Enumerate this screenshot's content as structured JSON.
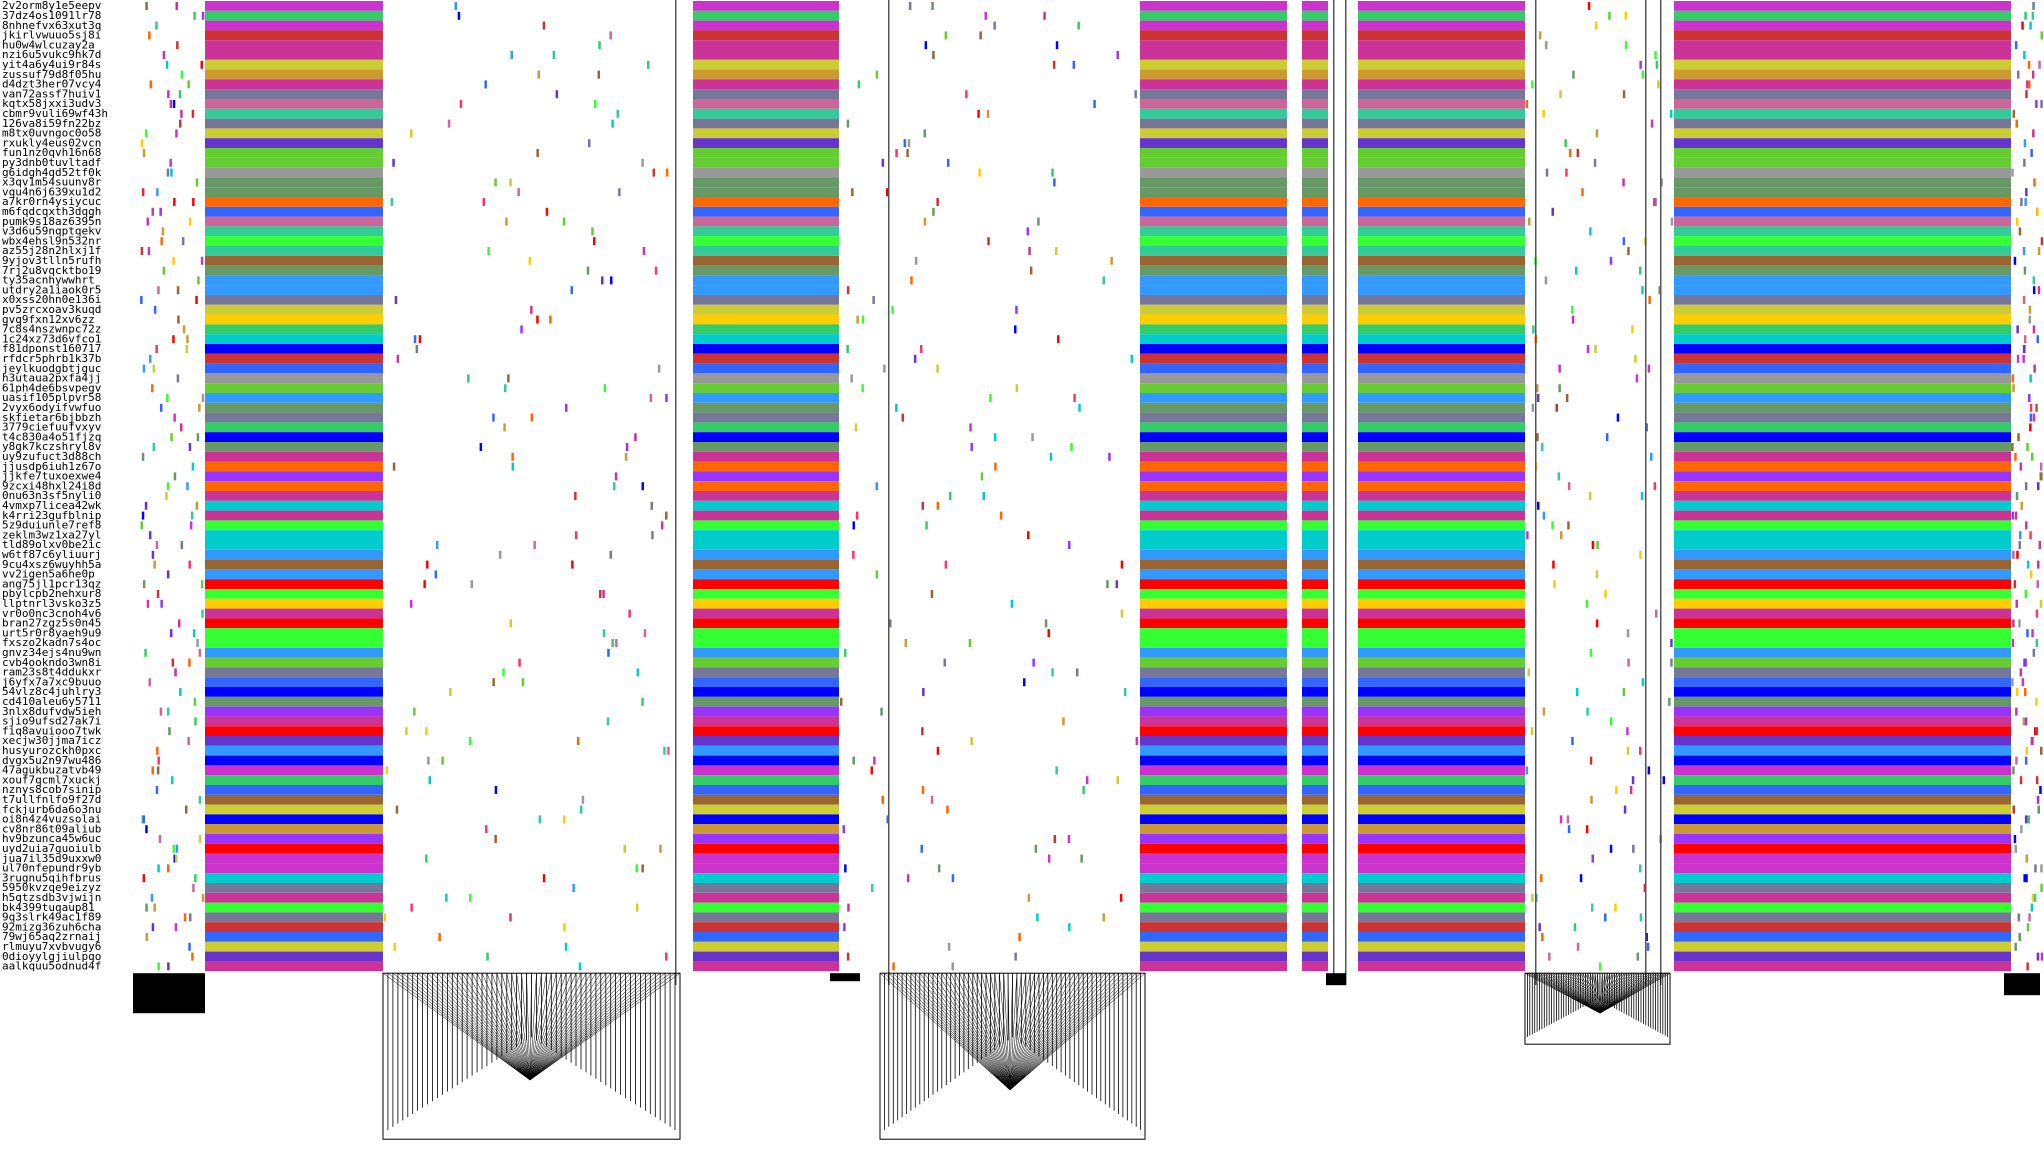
{
  "labels": [
    "2v2orm8y1e5eepv",
    "37dz4os1091lr78",
    "8nhnefvx63xut3q",
    "jkirlvwuuo5sj8i",
    "hu0w4wlcuzay2a",
    "nzi6u5vukc9hk7d",
    "yit4a6y4ui9r84s",
    "zussuf79d8f05hu",
    "d4dzt3her07vcy4",
    "van72assf7huiv1",
    "kqtx58jxxi3udv3",
    "cbmr9vuli69wf43h",
    "126va8i59fn22bz",
    "m8tx0uvngoc0o58",
    "rxukly4eus02vcn",
    "fun1nz0qvh16n68",
    "py3dnb0tuvltadf",
    "g6idgh4qd52tf0k",
    "x3qv1m54suunv8r",
    "vqu4n6j639xu1d2",
    "a7kr0rn4ysiycuc",
    "m6fqdcqxth3dqgh",
    "pumk9s18az6395n",
    "v3d6u59nqptqekv",
    "wbx4ehsl9n532nr",
    "az55j28n2hlxj1f",
    "9yjov3tlln5rufh",
    "7rj2u8vqcktbo19",
    "ty35acnhywwhrt",
    "utdry2a1iaok0r5",
    "x0xss20hn0e136i",
    "pv5zrcxoav3kuqd",
    "gvq9fxn12xv6zz",
    "7c8s4nszwnpc72z",
    "1c24xz73d6vfco1",
    "f81dponst160717",
    "rfdcr5phrb1k37b",
    "jeylkuodgbtjguc",
    "h3utaua2pxfa4jj",
    "61ph4de6bsvpegv",
    "uasif105plpvr58",
    "2vyx6odyifvwfuo",
    "skfietar6bjbbzh",
    "3779ciefuufvxyv",
    "t4c830a4o51fjzq",
    "y8gk7kczshryl8v",
    "uy9zufuct3d88ch",
    "jjusdp6iuh1z67o",
    "jjkfe7tuxoexwe4",
    "9zcxi48hxl24i8d",
    "0nu63n3sf5nyli0",
    "4vmxp7licea42wk",
    "k4rri23gufblnip",
    "5z9duiunle7ref8",
    "zeklm3wz1xa27yl",
    "tld89olxv0be2ic",
    "w6tf87c6yliuurj",
    "9cu4xsz6wuyhh5a",
    "vv2igen5a6he0p",
    "ang75jl1pcr13qz",
    "pbylcpb2nehxur8",
    "llptnrl3vsko3z5",
    "vr0o0nc3cnoh4v6",
    "bran27zgz5s0n45",
    "urt5r0r8yaeh9u9",
    "fxszo2kadn7s4oc",
    "gnvz34ejs4nu9wn",
    "cvb4ookndo3wn8i",
    "ram23s8t4ddukxr",
    "j6yfx7a7xc9buuo",
    "54vlz8c4juhlry3",
    "cd410aleu6y5711",
    "3nlx8dufvdw5ieh",
    "sjio9ufsd27ak7i",
    "fiq8avuiooo7twk",
    "xecjw30jjma7icz",
    "husyurozckh0pxc",
    "dvgx5u2n97wu486",
    "47agukbuzatvb49",
    "xouf7qcml7xuckj",
    "nznys8cob7sinip",
    "t7ullfnlfo9f27d",
    "fckjurb6da6o3nu",
    "oi8n4z4vuzsolai",
    "cv8nr86t09aliub",
    "hv9bzunca45w6uc",
    "uyd2uia7guoiulb",
    "jua7il35d9uxxw0",
    "ul70nfepundr9yb",
    "3rugnu5qihfbrus",
    "5950kvzqe9eizyz",
    "h5qtzsdb3vjwijn",
    "bk4399tuqaup81",
    "9q3slrk49ac1f89",
    "92mizg36zuh6cha",
    "79wj65aq2zrnaij",
    "rlmuyu7xvbvugy6",
    "0dioyylgjiulpqo",
    "aalkquu5odnud4f"
  ],
  "colors": {
    "accent_palette": [
      "#ff0000",
      "#ff3366",
      "#ff6600",
      "#ffcc00",
      "#cccc33",
      "#66cc33",
      "#33ff33",
      "#33cc66",
      "#33cc99",
      "#00cccc",
      "#3399ff",
      "#3366ff",
      "#0000ff",
      "#6633cc",
      "#9933ff",
      "#cc33cc",
      "#cc3399",
      "#cc6699",
      "#999999",
      "#777799",
      "#669966",
      "#cc9933",
      "#996633",
      "#cc3333"
    ],
    "row_stripe_outline": "#000000",
    "background": "#ffffff"
  }
}
